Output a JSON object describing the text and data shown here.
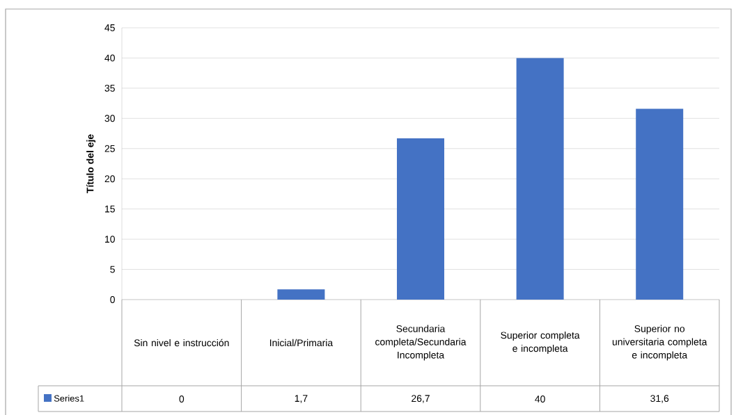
{
  "chart_data": {
    "type": "bar",
    "ylabel": "Título del eje",
    "categories": [
      "Sin nivel e instrucción",
      "Inicial/Primaria",
      "Secundaria completa/Secundaria Incompleta",
      "Superior completa e incompleta",
      "Superior no universitaria completa e incompleta"
    ],
    "series": [
      {
        "name": "Series1",
        "color": "#4472c4",
        "values": [
          0,
          1.7,
          26.7,
          40,
          31.6
        ],
        "value_labels": [
          "0",
          "1,7",
          "26,7",
          "40",
          "31,6"
        ]
      }
    ],
    "ylim": [
      0,
      45
    ],
    "yticks": [
      0,
      5,
      10,
      15,
      20,
      25,
      30,
      35,
      40,
      45
    ],
    "grid": "y",
    "legend": "bottom"
  }
}
